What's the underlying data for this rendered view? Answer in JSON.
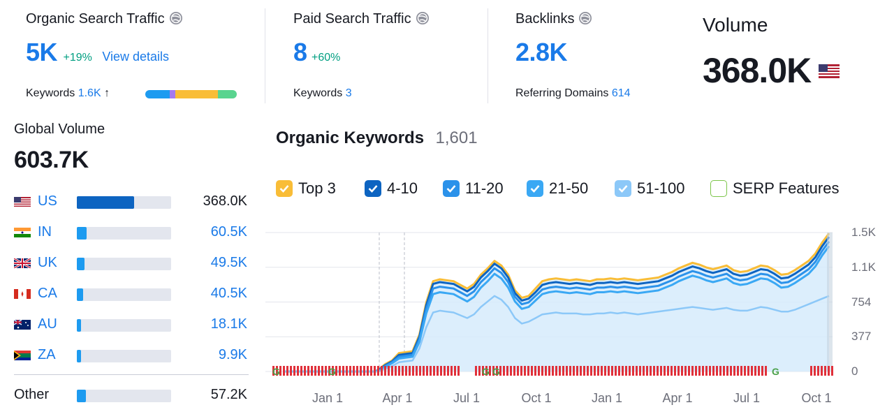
{
  "organic": {
    "title": "Organic Search Traffic",
    "value": "5K",
    "delta": "+19%",
    "link": "View details",
    "keywords_label": "Keywords",
    "keywords_value": "1.6K",
    "arrow": "↑"
  },
  "paid": {
    "title": "Paid Search Traffic",
    "value": "8",
    "delta": "+60%",
    "keywords_label": "Keywords",
    "keywords_value": "3"
  },
  "backlinks": {
    "title": "Backlinks",
    "value": "2.8K",
    "ref_label": "Referring Domains",
    "ref_value": "614"
  },
  "volume": {
    "title": "Volume",
    "value": "368.0K"
  },
  "global": {
    "title": "Global Volume",
    "value": "603.7K",
    "rows": [
      {
        "code": "US",
        "value": "368.0K",
        "share": 0.61
      },
      {
        "code": "IN",
        "value": "60.5K",
        "share": 0.1
      },
      {
        "code": "UK",
        "value": "49.5K",
        "share": 0.082
      },
      {
        "code": "CA",
        "value": "40.5K",
        "share": 0.067
      },
      {
        "code": "AU",
        "value": "18.1K",
        "share": 0.03
      },
      {
        "code": "ZA",
        "value": "9.9K",
        "share": 0.016
      }
    ],
    "other_label": "Other",
    "other_value": "57.2K",
    "other_share": 0.095
  },
  "keywords_chart": {
    "title": "Organic Keywords",
    "count": "1,601",
    "legend": [
      "Top 3",
      "4-10",
      "11-20",
      "21-50",
      "51-100",
      "SERP Features"
    ],
    "colors": {
      "top3": "#f9bd37",
      "pos4_10": "#0d64c1",
      "pos11_20": "#2b92ea",
      "pos21_50": "#3aa8f4",
      "pos51_100": "#8cc8f8",
      "serp": "#7cc54a",
      "google_marker": "#e0303a"
    }
  },
  "chart_data": {
    "type": "area",
    "title": "Organic Keywords",
    "x_ticks": [
      "Jan 1",
      "Apr 1",
      "Jul 1",
      "Oct 1",
      "Jan 1",
      "Apr 1",
      "Jul 1",
      "Oct 1"
    ],
    "y_ticks": [
      "0",
      "377",
      "754",
      "1.1K",
      "1.5K"
    ],
    "ylim": [
      0,
      1508
    ],
    "x": [
      0,
      2,
      4,
      6,
      8,
      10,
      12,
      13.5,
      14,
      15,
      16,
      17,
      18,
      19,
      20,
      21,
      22,
      23,
      24,
      25,
      26,
      27,
      28,
      29,
      30,
      31,
      32,
      33,
      34,
      35,
      36,
      37,
      38,
      39,
      40,
      41,
      42,
      43,
      44,
      45,
      46,
      47,
      48,
      49,
      50,
      51,
      52,
      53,
      54,
      55,
      56,
      57,
      58,
      59,
      60,
      61,
      62,
      63,
      64,
      65,
      66,
      67,
      68,
      69,
      70,
      71,
      72,
      73,
      74,
      75,
      76,
      77,
      78,
      79,
      80
    ],
    "series": [
      {
        "name": "Top 3",
        "values": [
          0,
          0,
          0,
          0,
          0,
          0,
          0,
          0,
          20,
          80,
          120,
          200,
          210,
          220,
          400,
          750,
          980,
          1000,
          990,
          980,
          940,
          900,
          950,
          1050,
          1120,
          1200,
          1150,
          1050,
          880,
          800,
          820,
          900,
          980,
          1000,
          1010,
          1000,
          990,
          1000,
          990,
          980,
          1000,
          1000,
          1010,
          1000,
          1010,
          1000,
          990,
          1000,
          1010,
          1020,
          1050,
          1080,
          1120,
          1150,
          1180,
          1160,
          1130,
          1110,
          1130,
          1150,
          1100,
          1080,
          1090,
          1120,
          1150,
          1140,
          1100,
          1050,
          1060,
          1100,
          1150,
          1200,
          1280,
          1400,
          1500
        ]
      },
      {
        "name": "4-10",
        "values": [
          0,
          0,
          0,
          0,
          0,
          0,
          0,
          0,
          15,
          70,
          110,
          180,
          190,
          200,
          380,
          720,
          950,
          970,
          960,
          950,
          910,
          870,
          920,
          1020,
          1090,
          1170,
          1120,
          1020,
          850,
          770,
          790,
          860,
          940,
          960,
          970,
          960,
          950,
          960,
          950,
          940,
          960,
          960,
          970,
          960,
          970,
          960,
          950,
          960,
          970,
          980,
          1010,
          1040,
          1080,
          1110,
          1140,
          1120,
          1090,
          1070,
          1090,
          1110,
          1060,
          1040,
          1050,
          1080,
          1110,
          1100,
          1060,
          1010,
          1020,
          1060,
          1110,
          1160,
          1240,
          1360,
          1460
        ]
      },
      {
        "name": "11-20",
        "values": [
          0,
          0,
          0,
          0,
          0,
          0,
          0,
          0,
          10,
          60,
          100,
          160,
          170,
          180,
          350,
          680,
          900,
          920,
          910,
          900,
          860,
          820,
          870,
          970,
          1040,
          1120,
          1070,
          970,
          810,
          730,
          750,
          820,
          890,
          910,
          920,
          910,
          900,
          910,
          900,
          890,
          910,
          910,
          920,
          910,
          920,
          910,
          900,
          910,
          920,
          930,
          960,
          990,
          1030,
          1060,
          1090,
          1070,
          1040,
          1020,
          1040,
          1060,
          1010,
          990,
          1000,
          1030,
          1060,
          1050,
          1010,
          960,
          970,
          1010,
          1060,
          1110,
          1190,
          1310,
          1410
        ]
      },
      {
        "name": "21-50",
        "values": [
          0,
          0,
          0,
          0,
          0,
          0,
          0,
          0,
          5,
          50,
          90,
          140,
          150,
          160,
          320,
          630,
          840,
          860,
          850,
          840,
          800,
          760,
          810,
          910,
          980,
          1060,
          1010,
          910,
          760,
          680,
          700,
          770,
          840,
          860,
          870,
          860,
          850,
          860,
          850,
          840,
          860,
          860,
          870,
          860,
          870,
          860,
          850,
          860,
          870,
          880,
          910,
          940,
          980,
          1010,
          1040,
          1020,
          990,
          970,
          990,
          1010,
          960,
          940,
          950,
          980,
          1010,
          1000,
          960,
          910,
          920,
          960,
          1010,
          1060,
          1140,
          1260,
          1360
        ]
      },
      {
        "name": "51-100",
        "values": [
          0,
          0,
          0,
          0,
          0,
          0,
          0,
          0,
          0,
          30,
          60,
          100,
          110,
          120,
          250,
          480,
          640,
          660,
          650,
          640,
          610,
          580,
          620,
          700,
          760,
          820,
          780,
          700,
          580,
          520,
          540,
          580,
          620,
          630,
          640,
          630,
          630,
          630,
          620,
          620,
          630,
          630,
          640,
          630,
          640,
          630,
          620,
          630,
          640,
          650,
          660,
          670,
          680,
          690,
          700,
          690,
          680,
          670,
          680,
          690,
          670,
          660,
          660,
          680,
          700,
          690,
          670,
          650,
          650,
          670,
          700,
          730,
          760,
          790,
          820
        ]
      }
    ]
  }
}
